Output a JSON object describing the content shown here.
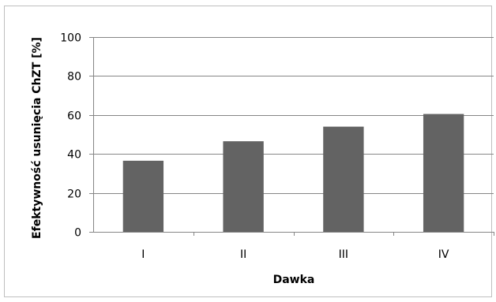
{
  "chart_data": {
    "type": "bar",
    "title": "",
    "xlabel": "Dawka",
    "ylabel": "Efektywność usunięcia ChZT [%]",
    "categories": [
      "I",
      "II",
      "III",
      "IV"
    ],
    "values": [
      36.5,
      46.5,
      54,
      60.5
    ],
    "ylim": [
      0,
      100
    ],
    "yticks": [
      0,
      20,
      40,
      60,
      80,
      100
    ],
    "grid": true,
    "legend": "none",
    "bar_color": "#636363",
    "grid_color": "#868686",
    "axis_color": "#868686"
  }
}
